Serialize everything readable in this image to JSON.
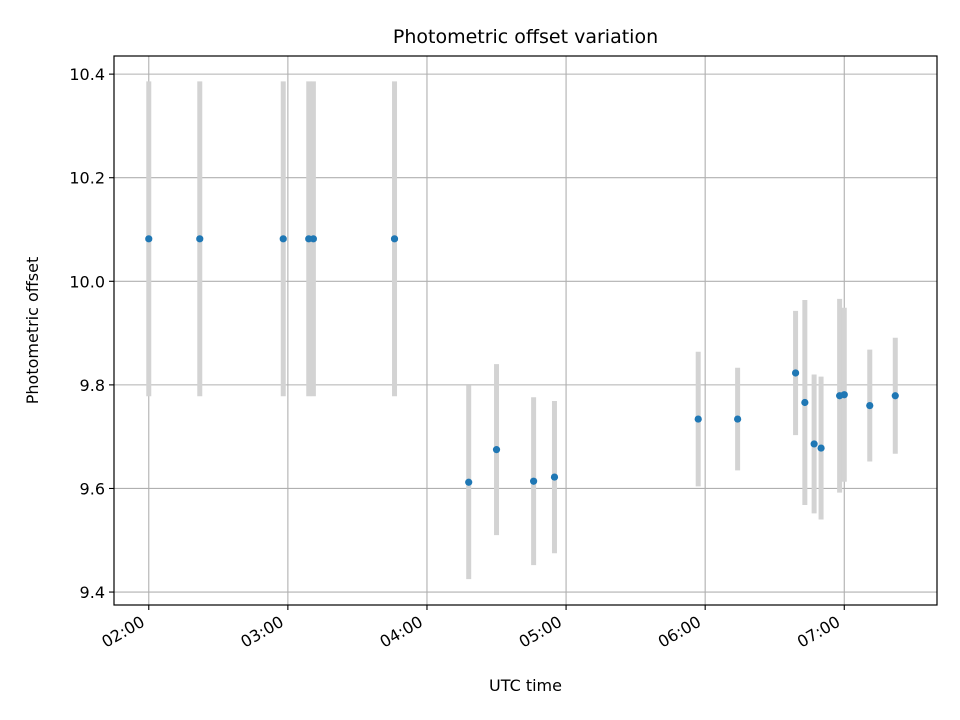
{
  "chart_data": {
    "type": "scatter",
    "title": "Photometric offset variation",
    "xlabel": "UTC time",
    "ylabel": "Photometric offset",
    "xlim": [
      "01:45",
      "07:40"
    ],
    "ylim": [
      9.375,
      10.435
    ],
    "x_ticks": [
      "02:00",
      "03:00",
      "04:00",
      "05:00",
      "06:00",
      "07:00"
    ],
    "y_ticks": [
      9.4,
      9.6,
      9.8,
      10.0,
      10.2,
      10.4
    ],
    "y_tick_labels": [
      "9.4",
      "9.6",
      "9.8",
      "10.0",
      "10.2",
      "10.4"
    ],
    "grid": true,
    "colors": {
      "point": "#1f77b4",
      "errorbar": "#d3d3d3",
      "grid": "#b0b0b0"
    },
    "points": [
      {
        "x": "02:00",
        "y": 10.082,
        "err": 0.304
      },
      {
        "x": "02:22",
        "y": 10.082,
        "err": 0.304
      },
      {
        "x": "02:58",
        "y": 10.082,
        "err": 0.304
      },
      {
        "x": "03:09",
        "y": 10.082,
        "err": 0.304
      },
      {
        "x": "03:11",
        "y": 10.082,
        "err": 0.304
      },
      {
        "x": "03:46",
        "y": 10.082,
        "err": 0.304
      },
      {
        "x": "04:18",
        "y": 9.612,
        "err": 0.187
      },
      {
        "x": "04:30",
        "y": 9.675,
        "err": 0.165
      },
      {
        "x": "04:46",
        "y": 9.614,
        "err": 0.162
      },
      {
        "x": "04:55",
        "y": 9.622,
        "err": 0.147
      },
      {
        "x": "05:57",
        "y": 9.734,
        "err": 0.13
      },
      {
        "x": "06:14",
        "y": 9.734,
        "err": 0.099
      },
      {
        "x": "06:39",
        "y": 9.823,
        "err": 0.12
      },
      {
        "x": "06:43",
        "y": 9.766,
        "err": 0.198
      },
      {
        "x": "06:47",
        "y": 9.686,
        "err": 0.134
      },
      {
        "x": "06:50",
        "y": 9.678,
        "err": 0.138
      },
      {
        "x": "06:58",
        "y": 9.779,
        "err": 0.187
      },
      {
        "x": "07:00",
        "y": 9.781,
        "err": 0.168
      },
      {
        "x": "07:11",
        "y": 9.76,
        "err": 0.108
      },
      {
        "x": "07:22",
        "y": 9.779,
        "err": 0.112
      }
    ]
  }
}
